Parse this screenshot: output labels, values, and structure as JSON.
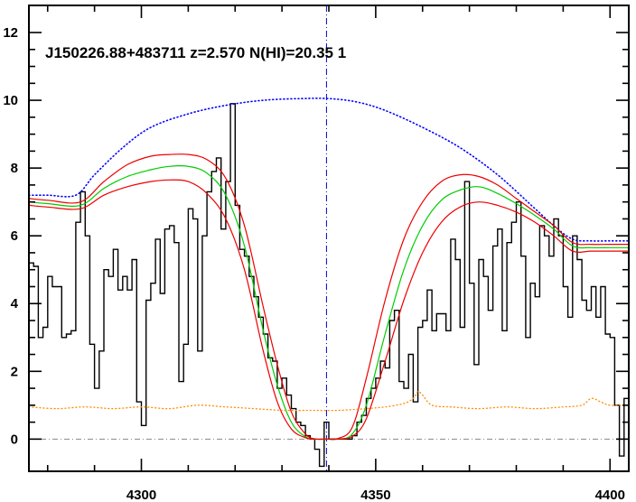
{
  "chart_data": {
    "type": "line",
    "title": "J150226.88+483711 z=2.570 N(HI)=20.35 1",
    "xlabel": "",
    "ylabel": "",
    "xlim": [
      4276,
      4404
    ],
    "ylim": [
      -0.95,
      12.8
    ],
    "x_ticks": [
      4300,
      4350,
      4400
    ],
    "x_tick_labels": [
      "4300",
      "4350",
      "4400"
    ],
    "y_ticks": [
      0,
      2,
      4,
      6,
      8,
      10,
      12
    ],
    "y_tick_labels": [
      "0",
      "2",
      "4",
      "6",
      "8",
      "10",
      "12"
    ],
    "grid": false,
    "colors": {
      "flux": "#000000",
      "continuum": "#0000ff",
      "model": "#00cc00",
      "model_bounds": "#ee0000",
      "error": "#ff8c00",
      "zero_line": "#888888",
      "line_center": "#0000cc"
    },
    "line_center_x": 4339.5,
    "series": [
      {
        "style": "steps",
        "x": [
          4276,
          4277,
          4278,
          4279,
          4280,
          4281,
          4282,
          4283,
          4284,
          4285,
          4286,
          4287,
          4288,
          4289,
          4290,
          4291,
          4292,
          4293,
          4294,
          4295,
          4296,
          4297,
          4298,
          4299,
          4300,
          4301,
          4302,
          4303,
          4304,
          4305,
          4306,
          4307,
          4308,
          4309,
          4310,
          4311,
          4312,
          4313,
          4314,
          4315,
          4316,
          4317,
          4318,
          4319,
          4320,
          4321,
          4322,
          4323,
          4324,
          4325,
          4326,
          4327,
          4328,
          4329,
          4330,
          4331,
          4332,
          4333,
          4334,
          4335,
          4336,
          4337,
          4338,
          4339,
          4340,
          4341,
          4342,
          4343,
          4344,
          4345,
          4346,
          4347,
          4348,
          4349,
          4350,
          4351,
          4352,
          4353,
          4354,
          4355,
          4356,
          4357,
          4358,
          4359,
          4360,
          4361,
          4362,
          4363,
          4364,
          4365,
          4366,
          4367,
          4368,
          4369,
          4370,
          4371,
          4372,
          4373,
          4374,
          4375,
          4376,
          4377,
          4378,
          4379,
          4380,
          4381,
          4382,
          4383,
          4384,
          4385,
          4386,
          4387,
          4388,
          4389,
          4390,
          4391,
          4392,
          4393,
          4394,
          4395,
          4396,
          4397,
          4398,
          4399,
          4400,
          4401,
          4402,
          4403,
          4404
        ],
        "y": [
          5.2,
          5.1,
          3.0,
          3.3,
          4.8,
          4.5,
          4.5,
          3.0,
          3.1,
          3.2,
          6.4,
          7.3,
          6.0,
          2.8,
          1.5,
          2.6,
          5.0,
          4.8,
          5.6,
          4.4,
          4.8,
          4.4,
          5.3,
          1.1,
          0.4,
          4.1,
          4.6,
          5.9,
          4.3,
          6.2,
          6.3,
          5.8,
          1.7,
          2.8,
          6.8,
          6.5,
          2.6,
          6.0,
          7.3,
          7.9,
          8.3,
          6.2,
          7.6,
          9.9,
          6.9,
          5.6,
          5.4,
          4.8,
          4.2,
          3.6,
          3.1,
          2.4,
          2.3,
          1.5,
          1.8,
          1.3,
          0.9,
          0.5,
          0.4,
          0.1,
          0.0,
          -0.3,
          -0.8,
          0.5,
          0.0,
          0.0,
          0.0,
          0.0,
          0.0,
          0.1,
          0.5,
          0.7,
          1.2,
          1.5,
          1.8,
          2.3,
          2.1,
          3.5,
          3.8,
          1.7,
          1.5,
          2.5,
          1.1,
          3.3,
          3.5,
          4.4,
          3.2,
          3.7,
          3.7,
          3.2,
          5.9,
          5.3,
          3.3,
          7.6,
          4.6,
          2.2,
          5.3,
          4.8,
          3.8,
          5.7,
          6.2,
          3.2,
          5.8,
          6.4,
          7.0,
          5.4,
          3.0,
          4.6,
          4.2,
          6.3,
          6.0,
          5.4,
          6.5,
          6.0,
          4.5,
          3.6,
          6.0,
          5.3,
          4.1,
          3.8,
          4.5,
          3.6,
          4.5,
          3.1,
          3.0,
          1.0,
          -0.5,
          1.2,
          0.9
        ]
      },
      {
        "style": "dotted",
        "x": [
          4276,
          4280,
          4286,
          4290,
          4296,
          4302,
          4310,
          4318,
          4326,
          4334,
          4340,
          4346,
          4352,
          4360,
          4368,
          4376,
          4384,
          4388,
          4392,
          4396,
          4400,
          4404
        ],
        "y": [
          7.2,
          7.2,
          7.2,
          7.8,
          8.6,
          9.2,
          9.6,
          9.85,
          10.0,
          10.05,
          10.05,
          9.95,
          9.7,
          9.2,
          8.6,
          7.8,
          6.8,
          6.3,
          5.9,
          5.85,
          5.85,
          5.85
        ]
      },
      {
        "style": "solid",
        "x": [
          4276,
          4280,
          4287,
          4292,
          4297,
          4302,
          4306,
          4310,
          4314,
          4318,
          4322,
          4326,
          4329,
          4332,
          4335,
          4337,
          4339.5,
          4342,
          4345,
          4348,
          4352,
          4356,
          4360,
          4364,
          4368,
          4372,
          4376,
          4380,
          4384,
          4388,
          4392,
          4396,
          4400,
          4404
        ],
        "y": [
          7.1,
          7.05,
          7.0,
          7.6,
          8.1,
          8.35,
          8.4,
          8.4,
          8.25,
          7.7,
          6.3,
          3.9,
          2.2,
          0.8,
          0.15,
          0.01,
          0.0,
          0.02,
          0.35,
          1.8,
          4.1,
          5.9,
          7.0,
          7.6,
          7.8,
          7.75,
          7.5,
          7.1,
          6.7,
          6.3,
          5.8,
          5.75,
          5.75,
          5.75
        ]
      },
      {
        "style": "solid",
        "x": [
          4276,
          4280,
          4287,
          4292,
          4297,
          4302,
          4306,
          4310,
          4314,
          4318,
          4322,
          4326,
          4329,
          4332,
          4335,
          4337,
          4339.5,
          4342,
          4345,
          4348,
          4352,
          4356,
          4360,
          4364,
          4368,
          4372,
          4376,
          4380,
          4384,
          4388,
          4392,
          4396,
          4400,
          4404
        ],
        "y": [
          7.0,
          6.95,
          6.9,
          7.4,
          7.75,
          7.95,
          8.05,
          8.05,
          7.85,
          7.2,
          5.7,
          3.2,
          1.6,
          0.5,
          0.07,
          0.0,
          0.0,
          0.0,
          0.15,
          1.0,
          3.1,
          5.0,
          6.3,
          7.05,
          7.35,
          7.45,
          7.25,
          6.95,
          6.6,
          6.2,
          5.7,
          5.65,
          5.65,
          5.65
        ]
      },
      {
        "style": "solid",
        "x": [
          4276,
          4280,
          4287,
          4292,
          4297,
          4302,
          4306,
          4310,
          4314,
          4318,
          4322,
          4326,
          4329,
          4332,
          4335,
          4337,
          4339.5,
          4342,
          4345,
          4348,
          4352,
          4356,
          4360,
          4364,
          4368,
          4372,
          4376,
          4380,
          4384,
          4388,
          4392,
          4396,
          4400,
          4404
        ],
        "y": [
          6.9,
          6.85,
          6.8,
          7.2,
          7.45,
          7.6,
          7.65,
          7.6,
          7.25,
          6.5,
          5.0,
          2.6,
          1.1,
          0.3,
          0.04,
          0.0,
          0.0,
          0.0,
          0.08,
          0.6,
          2.3,
          4.1,
          5.5,
          6.4,
          6.85,
          7.0,
          6.9,
          6.7,
          6.4,
          6.0,
          5.55,
          5.55,
          5.55,
          5.55
        ]
      },
      {
        "style": "dotted",
        "x": [
          4276,
          4282,
          4288,
          4294,
          4300,
          4306,
          4312,
          4318,
          4324,
          4330,
          4336,
          4342,
          4348,
          4352,
          4356,
          4358,
          4359,
          4360,
          4362,
          4366,
          4372,
          4378,
          4384,
          4390,
          4394,
          4396,
          4398,
          4400,
          4404
        ],
        "y": [
          0.95,
          0.9,
          0.95,
          0.9,
          0.95,
          0.9,
          1.0,
          0.95,
          0.9,
          0.85,
          0.85,
          0.85,
          0.9,
          0.95,
          1.05,
          1.2,
          1.4,
          1.3,
          1.0,
          0.95,
          0.9,
          0.95,
          0.9,
          0.95,
          1.0,
          1.2,
          1.1,
          1.0,
          1.0
        ]
      }
    ]
  }
}
